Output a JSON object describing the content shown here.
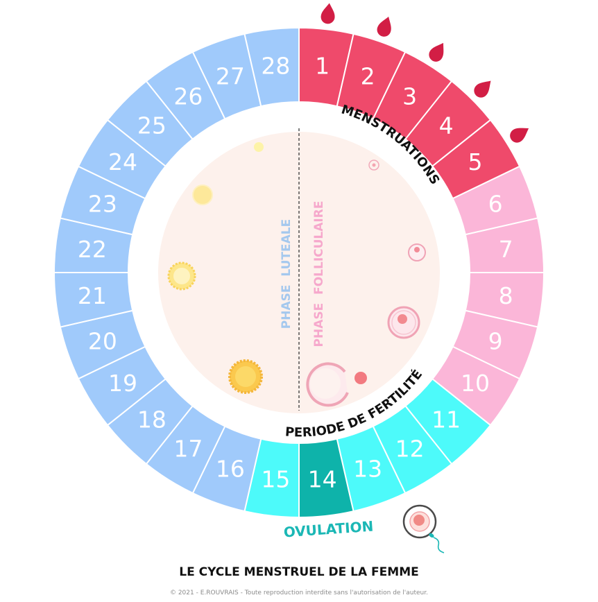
{
  "diagram": {
    "days": [
      {
        "n": "1",
        "phase": "menstruation"
      },
      {
        "n": "2",
        "phase": "menstruation"
      },
      {
        "n": "3",
        "phase": "menstruation"
      },
      {
        "n": "4",
        "phase": "menstruation"
      },
      {
        "n": "5",
        "phase": "menstruation"
      },
      {
        "n": "6",
        "phase": "follicular"
      },
      {
        "n": "7",
        "phase": "follicular"
      },
      {
        "n": "8",
        "phase": "follicular"
      },
      {
        "n": "9",
        "phase": "follicular"
      },
      {
        "n": "10",
        "phase": "follicular"
      },
      {
        "n": "11",
        "phase": "fertile"
      },
      {
        "n": "12",
        "phase": "fertile"
      },
      {
        "n": "13",
        "phase": "fertile"
      },
      {
        "n": "14",
        "phase": "ovulation"
      },
      {
        "n": "15",
        "phase": "fertile"
      },
      {
        "n": "16",
        "phase": "luteal"
      },
      {
        "n": "17",
        "phase": "luteal"
      },
      {
        "n": "18",
        "phase": "luteal"
      },
      {
        "n": "19",
        "phase": "luteal"
      },
      {
        "n": "20",
        "phase": "luteal"
      },
      {
        "n": "21",
        "phase": "luteal"
      },
      {
        "n": "22",
        "phase": "luteal"
      },
      {
        "n": "23",
        "phase": "luteal"
      },
      {
        "n": "24",
        "phase": "luteal"
      },
      {
        "n": "25",
        "phase": "luteal"
      },
      {
        "n": "26",
        "phase": "luteal"
      },
      {
        "n": "27",
        "phase": "luteal"
      },
      {
        "n": "28",
        "phase": "luteal"
      }
    ],
    "colors": {
      "menstruation": "#ef4a6b",
      "follicular": "#fbb6d8",
      "fertile": "#4dfafa",
      "ovulation": "#0eb3aa",
      "luteal": "#a0cafb",
      "drop": "#d21e45",
      "inner_circle": "#fdf1ec",
      "luteal_text": "#a4c8ee",
      "follicular_text": "#f6a8cc",
      "ovulation_text": "#1bb7b5"
    },
    "labels": {
      "menstruations": "MENSTRUATIONS",
      "fertility": "PERIODE DE FERTILITÉ",
      "ovulation": "OVULATION",
      "phase_luteale": "PHASE  LUTEALE",
      "phase_folliculaire": "PHASE  FOLLICULAIRE"
    },
    "drops_count": 5
  },
  "footer": {
    "title": "LE CYCLE MENSTRUEL DE LA FEMME",
    "copyright": "© 2021 - E.ROUVRAIS - Toute reproduction interdite sans l'autorisation de l'auteur."
  }
}
